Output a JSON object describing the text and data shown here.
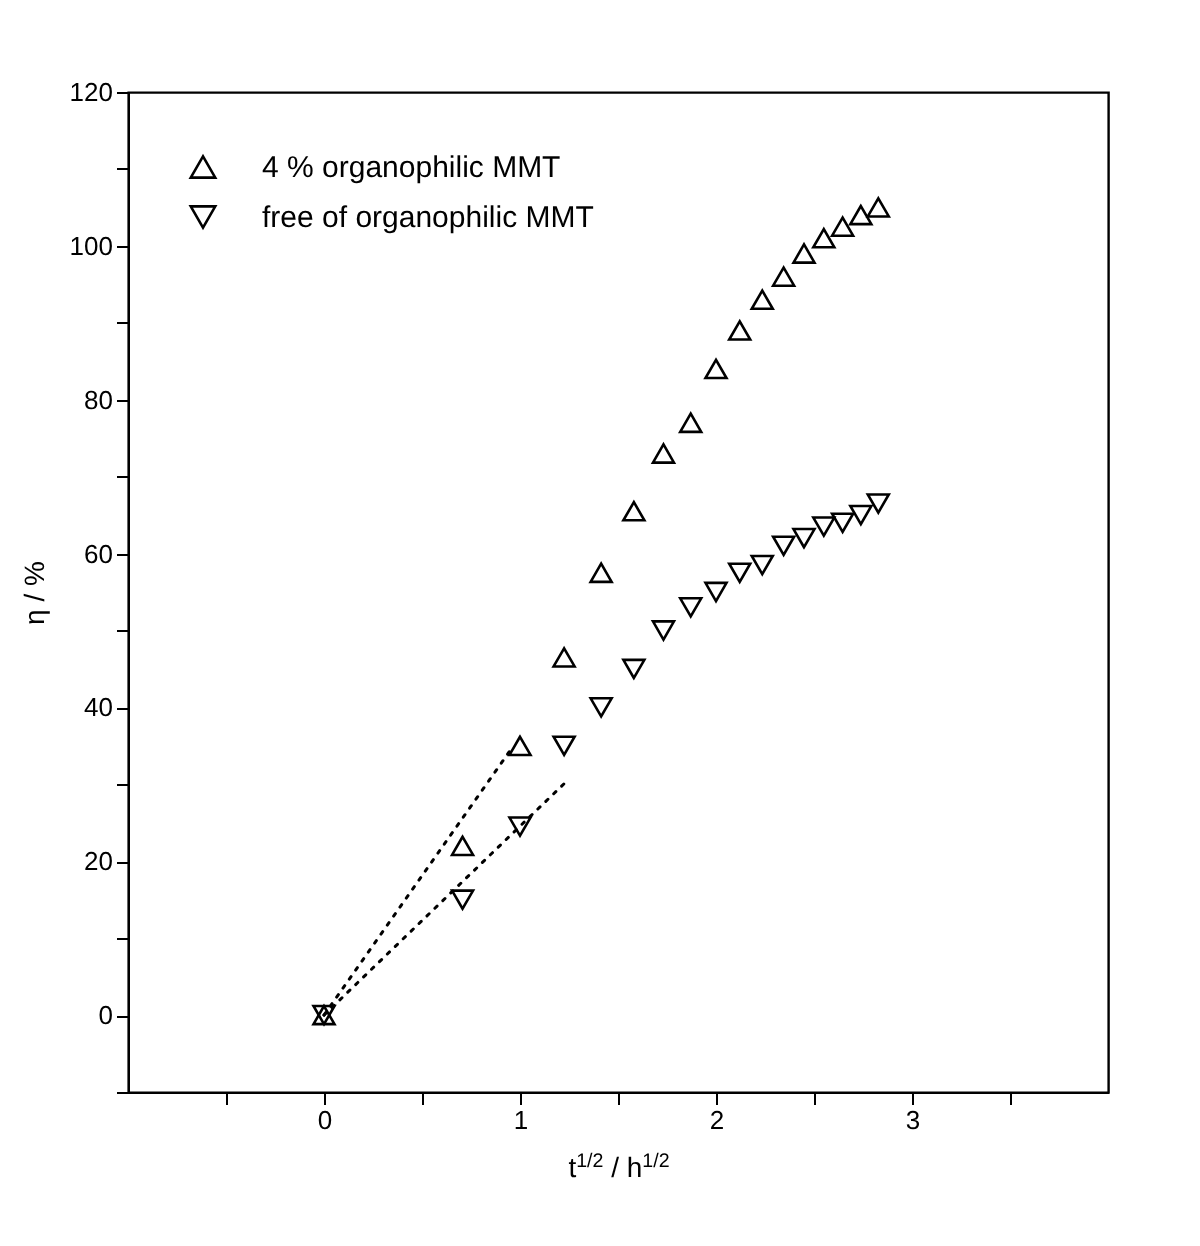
{
  "chart_data": {
    "type": "scatter",
    "xlabel": "t$^{1/2}$ / h$^{1/2}$",
    "ylabel": "η / %",
    "xlim": [
      -1,
      4
    ],
    "xticks": [
      {
        "value": -0.5,
        "label": null
      },
      0,
      {
        "value": 0.5,
        "label": null
      },
      1,
      {
        "value": 1.5,
        "label": null
      },
      2,
      {
        "value": 2.5,
        "label": null
      },
      3,
      {
        "value": 3.5,
        "label": null
      }
    ],
    "ylim": [
      -10,
      120
    ],
    "yticks": [
      {
        "value": -10,
        "label": null
      },
      0,
      {
        "value": 10,
        "label": null
      },
      20,
      {
        "value": 30,
        "label": null
      },
      40,
      {
        "value": 50,
        "label": null
      },
      60,
      {
        "value": 70,
        "label": null
      },
      80,
      {
        "value": 90,
        "label": null
      },
      100,
      {
        "value": 110,
        "label": null
      },
      120
    ],
    "grid": false,
    "legend": "top left",
    "series": [
      {
        "name": "4 % organophilic MMT",
        "marker": "triangle",
        "color": "#000000",
        "x": [
          0,
          0.707,
          1,
          1.225,
          1.414,
          1.581,
          1.732,
          1.871,
          2,
          2.121,
          2.236,
          2.345,
          2.449,
          2.55,
          2.646,
          2.739,
          2.828
        ],
        "values": [
          0,
          22,
          35,
          46.5,
          57.5,
          65.5,
          73,
          77,
          84,
          89,
          93,
          96,
          99,
          101,
          102.5,
          104,
          105
        ]
      },
      {
        "name": "free of organophilic MMT",
        "marker": "triangle-down",
        "color": "#000000",
        "x": [
          0,
          0.707,
          1,
          1.225,
          1.414,
          1.581,
          1.732,
          1.871,
          2,
          2.121,
          2.236,
          2.345,
          2.449,
          2.55,
          2.646,
          2.739,
          2.828
        ],
        "values": [
          0,
          15,
          24.5,
          35,
          40,
          45,
          50,
          53,
          55,
          57.5,
          58.5,
          61,
          62,
          63.5,
          64,
          65,
          66.5
        ]
      },
      {
        "type": "line",
        "line_style": "dotted",
        "color": "#000000",
        "x": [
          0,
          0.95
        ],
        "values": [
          0,
          34.4
        ]
      },
      {
        "type": "line",
        "line_style": "dotted",
        "color": "#000000",
        "x": [
          0,
          1.23
        ],
        "values": [
          0,
          30.2
        ]
      }
    ]
  }
}
